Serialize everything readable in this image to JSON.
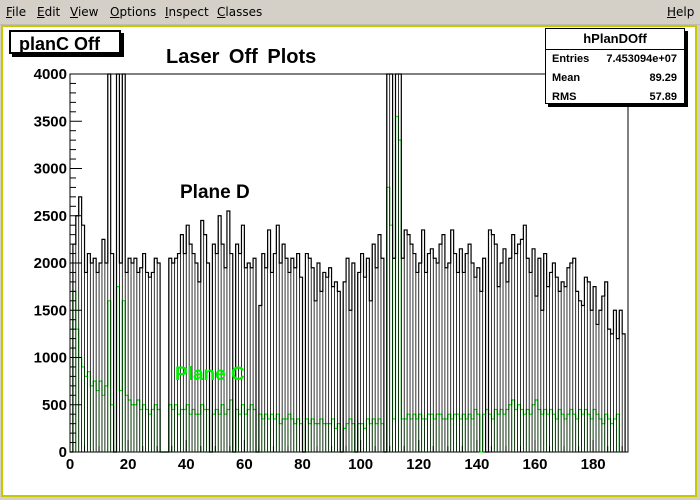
{
  "menu": {
    "file": "File",
    "edit": "Edit",
    "view": "View",
    "options": "Options",
    "inspect": "Inspect",
    "classes": "Classes",
    "help": "Help"
  },
  "canvas": {
    "pad_title": "planC Off",
    "plot_title": "Laser  Off  Plots",
    "label_plane_d": "Plane D",
    "label_plane_c": "Plane C"
  },
  "stats": {
    "name": "hPlanDOff",
    "rows": [
      {
        "key": "Entries",
        "value": "7.453094e+07"
      },
      {
        "key": "Mean",
        "value": "89.29"
      },
      {
        "key": "RMS",
        "value": "57.89"
      }
    ]
  },
  "colors": {
    "frame": "#c8c800",
    "plane_d": "#000000",
    "plane_c": "#00ee00"
  },
  "chart_data": {
    "type": "histogram",
    "xlim": [
      0,
      192
    ],
    "ylim": [
      0,
      4000
    ],
    "xticks": [
      0,
      20,
      40,
      60,
      80,
      100,
      120,
      140,
      160,
      180
    ],
    "yticks": [
      0,
      500,
      1000,
      1500,
      2000,
      2500,
      3000,
      3500,
      4000
    ],
    "series": [
      {
        "name": "Plane D",
        "color": "#000000",
        "bin_width": 1,
        "values": [
          0,
          2200,
          2500,
          2700,
          2400,
          1900,
          2100,
          2000,
          2050,
          1900,
          2000,
          2250,
          2000,
          4000,
          2100,
          0,
          4000,
          2000,
          4000,
          1900,
          2050,
          2000,
          2050,
          1900,
          1950,
          2100,
          1900,
          1850,
          1900,
          2050,
          2000,
          0,
          0,
          0,
          2050,
          2000,
          2050,
          2100,
          2300,
          2100,
          2400,
          2200,
          2100,
          2000,
          1800,
          2450,
          2300,
          2000,
          0,
          2200,
          2100,
          2500,
          2200,
          1950,
          2550,
          2100,
          0,
          2200,
          2100,
          2400,
          1950,
          2000,
          1950,
          2050,
          0,
          1550,
          2100,
          1950,
          2350,
          1900,
          2100,
          2400,
          2000,
          2200,
          2050,
          1900,
          2050,
          1950,
          2100,
          1850,
          0,
          2100,
          2050,
          1950,
          1600,
          2000,
          1700,
          1900,
          1850,
          1950,
          1750,
          1800,
          1700,
          0,
          1800,
          2050,
          1500,
          2000,
          0,
          1900,
          2100,
          1850,
          2050,
          1600,
          2200,
          1950,
          2300,
          2050,
          0,
          4000,
          4000,
          2050,
          4000,
          4000,
          2050,
          2350,
          2300,
          2200,
          2100,
          1900,
          2000,
          2350,
          1900,
          2100,
          2150,
          2050,
          2000,
          2200,
          2300,
          1950,
          2000,
          2350,
          2100,
          1900,
          2150,
          1900,
          2100,
          2200,
          2000,
          1850,
          1950,
          1700,
          2050,
          0,
          2350,
          2300,
          2200,
          1750,
          2000,
          2150,
          1800,
          2050,
          2300,
          2100,
          2200,
          2250,
          2400,
          2050,
          1900,
          2150,
          1650,
          2050,
          1500,
          2100,
          1750,
          1900,
          2000,
          1850,
          1700,
          1800,
          1750,
          1950,
          2000,
          2050,
          1700,
          1600,
          1550,
          1850,
          1800,
          1500,
          1750,
          1350,
          1500,
          1650,
          1800,
          1300,
          1250,
          1500,
          1200,
          1500,
          1250
        ],
        "comment_full_height": "bins 13,16,18,109,110,112,113 exceed the axis maximum"
      },
      {
        "name": "Plane C",
        "color": "#00ee00",
        "bin_width": 1,
        "values": [
          0,
          1700,
          1300,
          1000,
          900,
          800,
          850,
          700,
          750,
          650,
          750,
          600,
          700,
          1600,
          500,
          0,
          1750,
          650,
          1600,
          600,
          550,
          500,
          500,
          550,
          450,
          500,
          450,
          400,
          450,
          500,
          450,
          0,
          0,
          0,
          500,
          450,
          500,
          400,
          450,
          450,
          500,
          400,
          450,
          400,
          400,
          500,
          450,
          450,
          0,
          400,
          450,
          400,
          500,
          400,
          450,
          550,
          0,
          450,
          400,
          500,
          400,
          450,
          500,
          450,
          0,
          400,
          350,
          400,
          350,
          400,
          350,
          400,
          300,
          350,
          350,
          400,
          350,
          300,
          350,
          300,
          0,
          350,
          300,
          350,
          300,
          300,
          350,
          300,
          300,
          300,
          350,
          250,
          300,
          0,
          250,
          300,
          350,
          300,
          0,
          300,
          300,
          250,
          350,
          300,
          350,
          300,
          350,
          300,
          0,
          2800,
          2400,
          350,
          3550,
          3300,
          350,
          350,
          400,
          350,
          400,
          350,
          400,
          350,
          350,
          400,
          400,
          350,
          400,
          400,
          350,
          350,
          400,
          350,
          400,
          400,
          350,
          400,
          350,
          400,
          350,
          450,
          400,
          0,
          400,
          450,
          400,
          350,
          450,
          400,
          450,
          400,
          450,
          500,
          550,
          450,
          500,
          450,
          400,
          450,
          400,
          500,
          550,
          450,
          400,
          450,
          400,
          450,
          400,
          350,
          450,
          400,
          350,
          400,
          450,
          400,
          350,
          450,
          400,
          450,
          400,
          350,
          450,
          400,
          350,
          300,
          400,
          350,
          300,
          350,
          400
        ]
      }
    ]
  }
}
